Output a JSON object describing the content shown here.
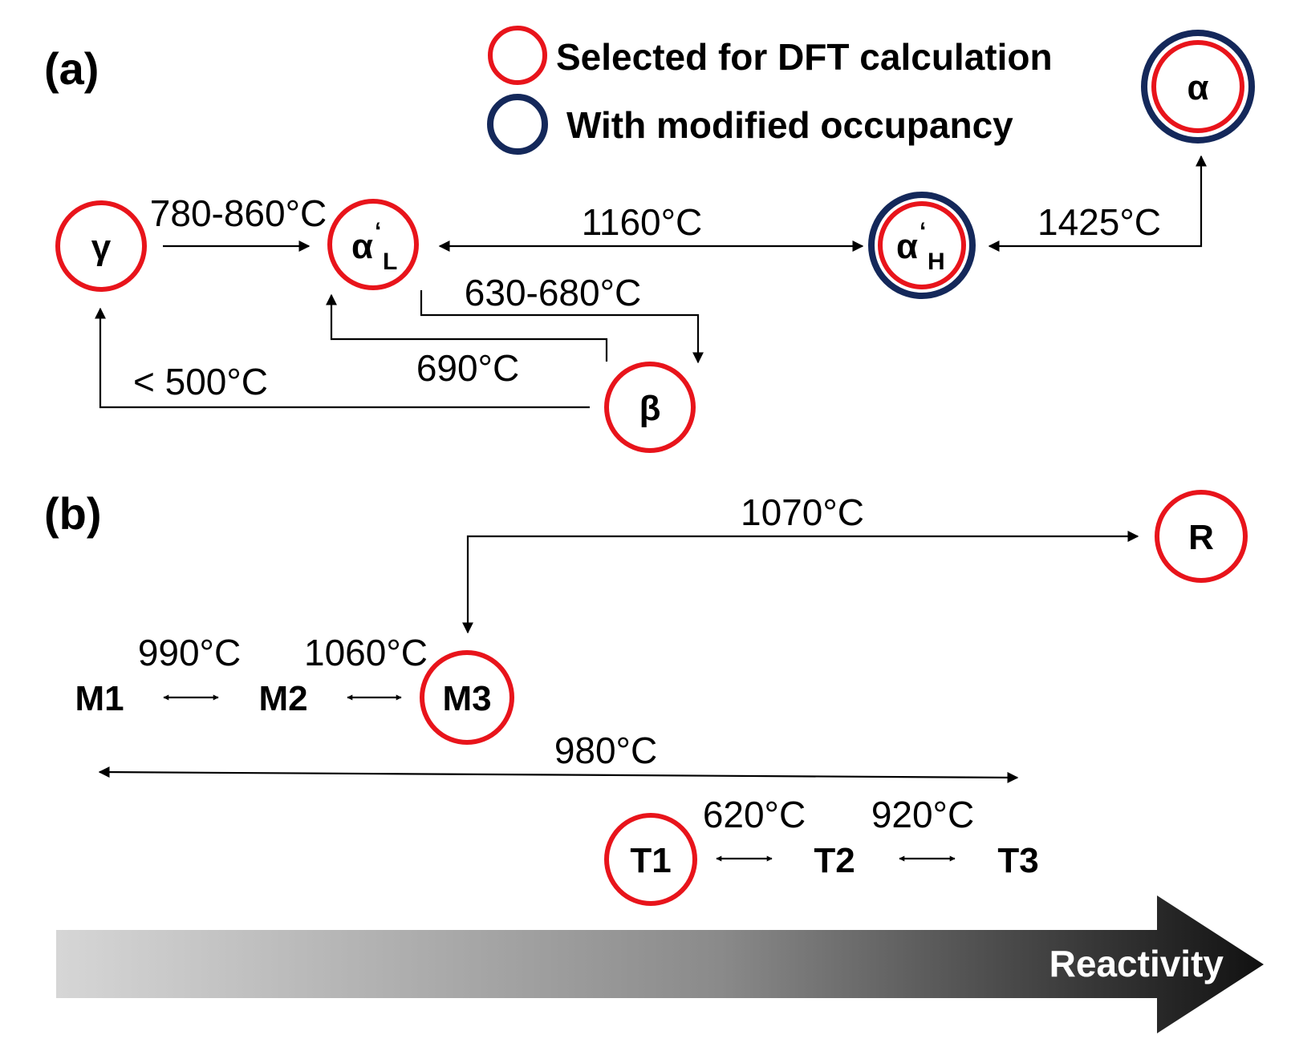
{
  "panels": {
    "a": "(a)",
    "b": "(b)"
  },
  "legend": {
    "selected": "Selected for DFT calculation",
    "modified": "With modified occupancy",
    "selected_color": "#e8141b",
    "modified_color": "#14285a"
  },
  "phases_a": {
    "gamma": "γ",
    "alpha_L": "α",
    "alpha_L_mark": "‘",
    "alpha_L_sub": "L",
    "alpha_H": "α",
    "alpha_H_mark": "‘",
    "alpha_H_sub": "H",
    "alpha": "α",
    "beta": "β"
  },
  "transitions_a": {
    "gamma_to_alphaL": "780-860°C",
    "alphaL_alphaH": "1160°C",
    "alphaH_alpha": "1425°C",
    "alphaL_to_beta": "630-680°C",
    "beta_to_alphaL": "690°C",
    "beta_to_gamma": "< 500°C"
  },
  "phases_b": {
    "M1": "M1",
    "M2": "M2",
    "M3": "M3",
    "R": "R",
    "T1": "T1",
    "T2": "T2",
    "T3": "T3"
  },
  "transitions_b": {
    "M3_R": "1070°C",
    "M1_M2": "990°C",
    "M2_M3": "1060°C",
    "T3_M1": "980°C",
    "T1_T2": "620°C",
    "T2_T3": "920°C"
  },
  "reactivity": {
    "label": "Reactivity",
    "gradient_start": "#d6d6d6",
    "gradient_end": "#111111"
  }
}
